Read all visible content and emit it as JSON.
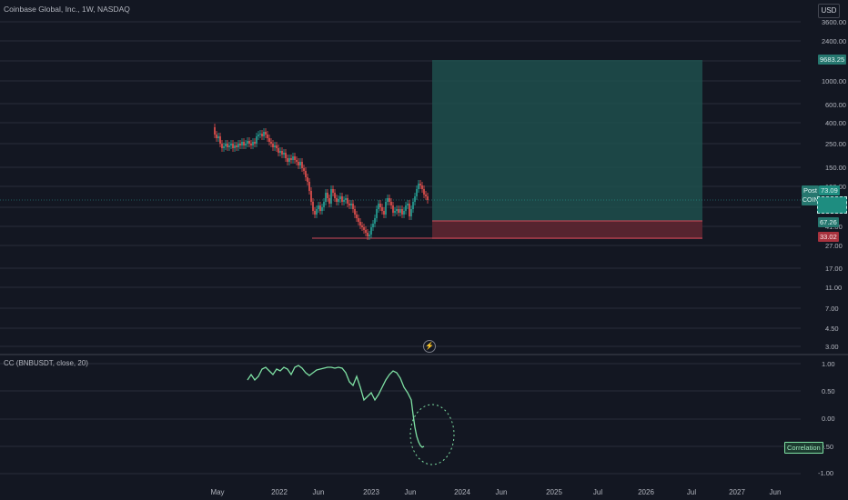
{
  "header": {
    "symbol_title": "Coinbase Global, Inc., 1W, NASDAQ",
    "currency_button": "USD"
  },
  "price_axis": {
    "labels": [
      "3600.00",
      "2400.00",
      "1000.00",
      "600.00",
      "400.00",
      "250.00",
      "150.00",
      "100.00",
      "41.00",
      "27.00",
      "17.00",
      "11.00",
      "7.00",
      "4.50",
      "3.00"
    ],
    "tag_target": "9683.25",
    "tag_post_label": "Post",
    "tag_post_value": "73.09",
    "tag_stop": "67.26",
    "tag_entry": "33.02",
    "tag_coin": "COIN"
  },
  "indicator": {
    "title": "CC (BNBUSDT, close, 20)",
    "axis_labels": [
      "1.00",
      "0.50",
      "0.00",
      "-0.50",
      "-1.00"
    ],
    "tag_label": "Correlation"
  },
  "time_axis": {
    "labels": [
      "May",
      "2022",
      "Jun",
      "2023",
      "Jun",
      "2024",
      "Jun",
      "2025",
      "Jul",
      "2026",
      "Jul",
      "2027",
      "Jun"
    ]
  },
  "colors": {
    "background": "#131722",
    "grid": "#2a2e39",
    "up": "#26a69a",
    "down": "#ef5350",
    "target_zone": "#1f5f5b",
    "stop_zone": "#6e2d37",
    "correlation_line": "#7ee0a3"
  },
  "icons": {
    "bolt": "lightning-icon"
  }
}
